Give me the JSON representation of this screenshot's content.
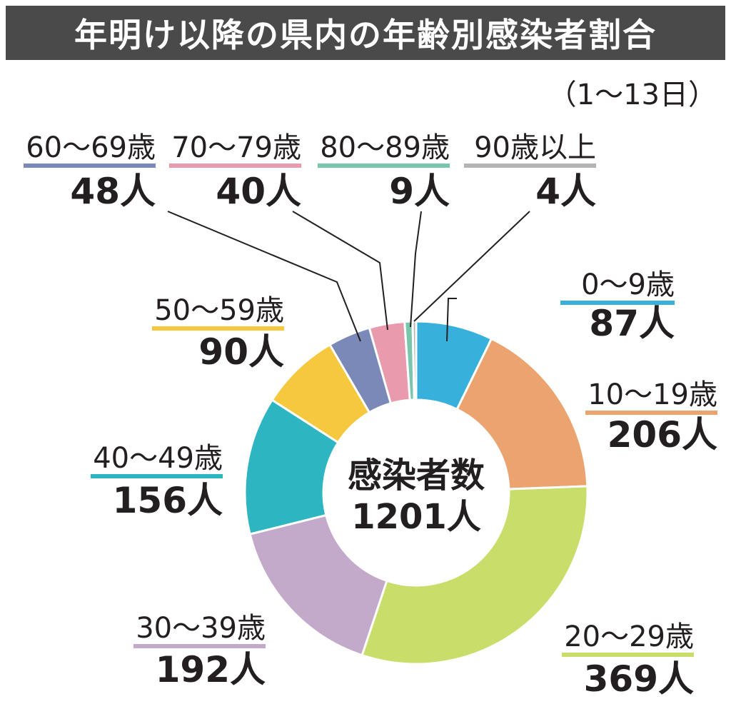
{
  "chart_data": {
    "type": "pie",
    "style": "donut",
    "title": "年明け以降の県内の年齢別感染者割合",
    "subtitle": "（1～13日）",
    "center_label": "感染者数",
    "center_value": "1201人",
    "total": 1201,
    "unit": "人",
    "slices": [
      {
        "label": "0～9歳",
        "value": 87,
        "display": "87人",
        "color": "#37b1dc"
      },
      {
        "label": "10～19歳",
        "value": 206,
        "display": "206人",
        "color": "#eba36f"
      },
      {
        "label": "20～29歳",
        "value": 369,
        "display": "369人",
        "color": "#c9dd6a"
      },
      {
        "label": "30～39歳",
        "value": 192,
        "display": "192人",
        "color": "#c3a9ca"
      },
      {
        "label": "40～49歳",
        "value": 156,
        "display": "156人",
        "color": "#2db5c1"
      },
      {
        "label": "50～59歳",
        "value": 90,
        "display": "90人",
        "color": "#f6c83e"
      },
      {
        "label": "60～69歳",
        "value": 48,
        "display": "48人",
        "color": "#7b89b8"
      },
      {
        "label": "70～79歳",
        "value": 40,
        "display": "40人",
        "color": "#e99aac"
      },
      {
        "label": "80～89歳",
        "value": 9,
        "display": "9人",
        "color": "#7ac6ad"
      },
      {
        "label": "90歳以上",
        "value": 4,
        "display": "4人",
        "color": "#b4b4b4"
      }
    ]
  }
}
